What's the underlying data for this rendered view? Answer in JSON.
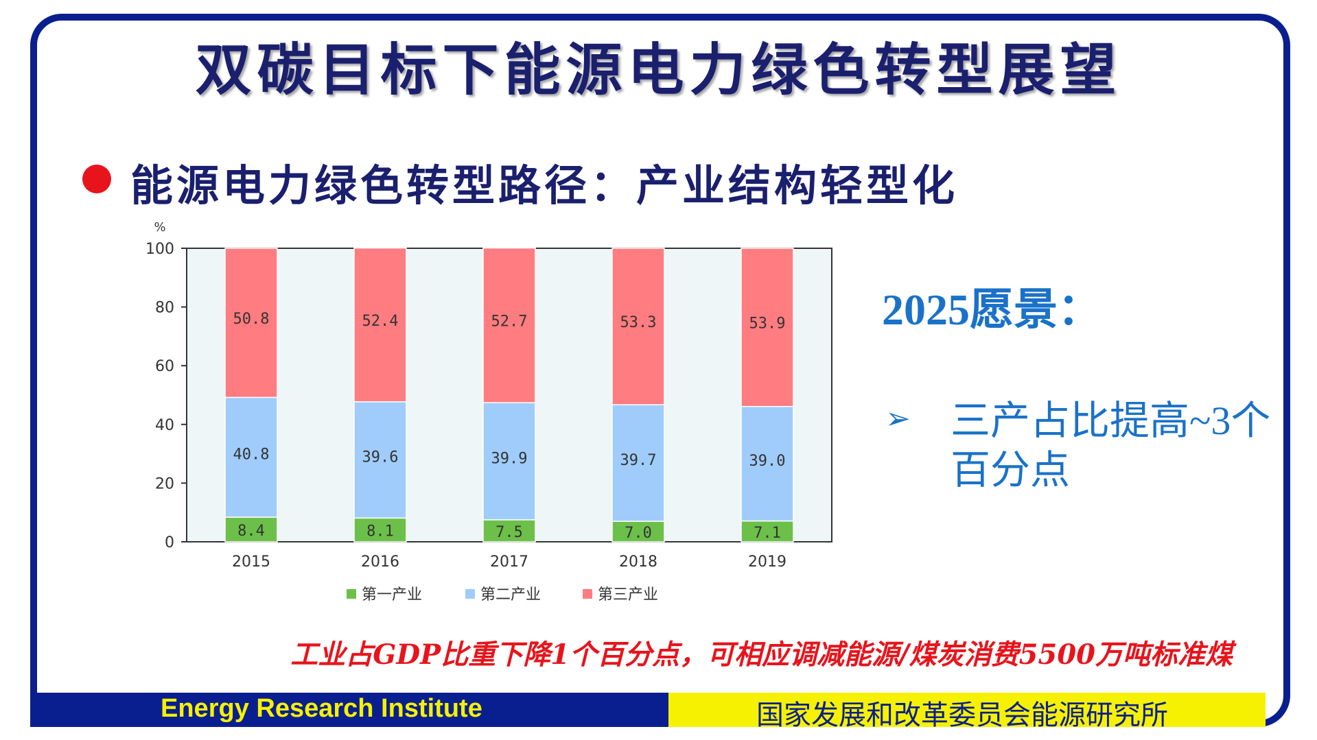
{
  "slide": {
    "title": "双碳目标下能源电力绿色转型展望",
    "subtitle": "能源电力绿色转型路径：产业结构轻型化",
    "vision_title": "2025愿景：",
    "vision_bullet": "三产占比提高~3个百分点",
    "note": "工业占GDP比重下降1个百分点，可相应调减能源/煤炭消费5500万吨标准煤",
    "footer_left": "Energy Research Institute",
    "footer_right": "国家发展和改革委员会能源研究所"
  },
  "colors": {
    "frame": "#0a1f8f",
    "title": "#1a1f6e",
    "accent_blue": "#1a72c8",
    "note_red": "#e8141c",
    "footer_yellow": "#f6f100",
    "plot_bg": "#eef6f8",
    "primary": "#6cc04a",
    "secondary": "#9fccfa",
    "tertiary": "#ff7c80"
  },
  "chart_data": {
    "type": "bar",
    "stacked": true,
    "unit": "%",
    "categories": [
      "2015",
      "2016",
      "2017",
      "2018",
      "2019"
    ],
    "series": [
      {
        "name": "第一产业",
        "values": [
          8.4,
          8.1,
          7.5,
          7.0,
          7.1
        ],
        "color": "#6cc04a"
      },
      {
        "name": "第二产业",
        "values": [
          40.8,
          39.6,
          39.9,
          39.7,
          39.0
        ],
        "color": "#9fccfa"
      },
      {
        "name": "第三产业",
        "values": [
          50.8,
          52.4,
          52.7,
          53.3,
          53.9
        ],
        "color": "#ff7c80"
      }
    ],
    "ylim": [
      0,
      100
    ],
    "yticks": [
      "0",
      "20",
      "40",
      "60",
      "80",
      "100"
    ],
    "value_labels": [
      [
        "8.4",
        "8.1",
        "7.5",
        "7.0",
        "7.1"
      ],
      [
        "40.8",
        "39.6",
        "39.9",
        "39.7",
        "39.0"
      ],
      [
        "50.8",
        "52.4",
        "52.7",
        "53.3",
        "53.9"
      ]
    ],
    "legend_position": "bottom",
    "grid": false
  }
}
